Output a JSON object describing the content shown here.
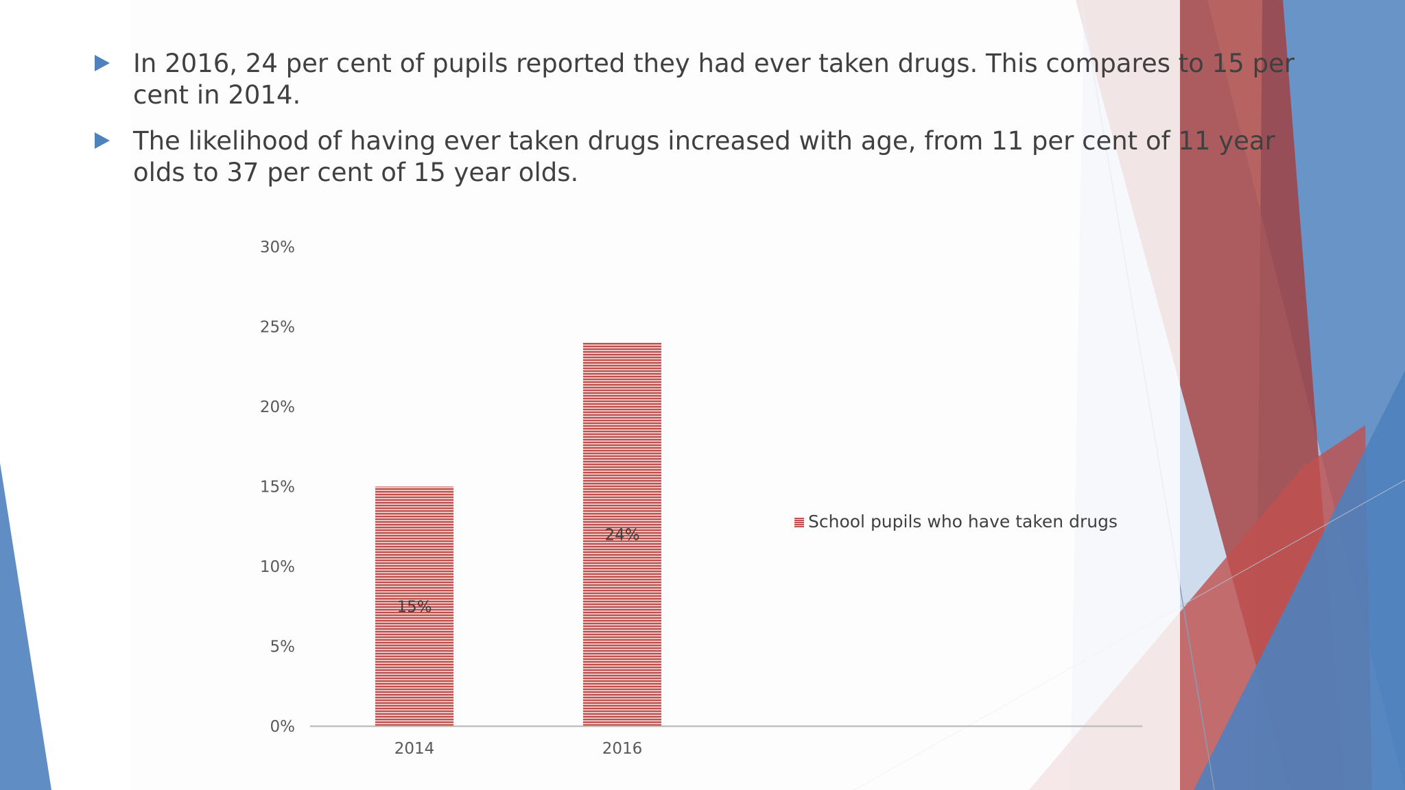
{
  "slide": {
    "bullets": [
      {
        "text": "In 2016, 24 per cent of pupils reported they had ever taken drugs. This compares to 15 per cent in 2014."
      },
      {
        "text": "The likelihood of having ever taken drugs increased with age, from 11 per cent of 11 year olds to 37 per cent of 15 year olds."
      }
    ],
    "colors": {
      "bullet": "#4f81bd",
      "accent_red": "#c0504d",
      "accent_blue": "#4f81bd",
      "text": "#404040"
    }
  },
  "chart_data": {
    "type": "bar",
    "categories": [
      "2014",
      "2016"
    ],
    "series": [
      {
        "name": "School pupils who have taken drugs",
        "values": [
          0.15,
          0.24
        ],
        "color": "#c0504d",
        "pattern": "horizontal-stripes"
      }
    ],
    "data_labels": [
      "15%",
      "24%"
    ],
    "y_ticks": [
      "0%",
      "5%",
      "10%",
      "15%",
      "20%",
      "25%",
      "30%"
    ],
    "ylim": [
      0,
      0.3
    ],
    "grid": false,
    "legend_position": "right"
  }
}
